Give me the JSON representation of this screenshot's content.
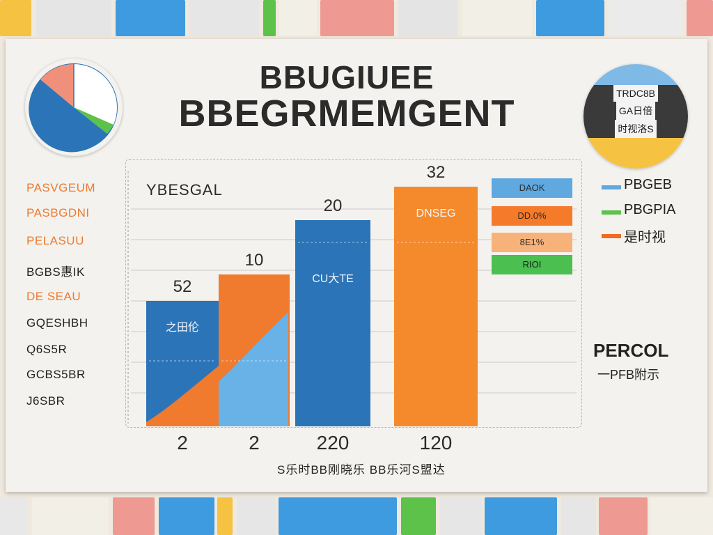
{
  "title": {
    "line1": "BBUGIUEE",
    "line2": "BBEGRMEMGENT"
  },
  "legend_sticker": {
    "rows": [
      "TRDC8B",
      "GA日倍",
      "时视洛S"
    ]
  },
  "side_labels": [
    "PASVGEUM",
    "PASBGDNI",
    "PELASUU",
    "BGBS惠IK",
    "DE SEAU",
    "GQESHBH",
    "Q6S5R",
    "GCBS5BR",
    "J6SBR"
  ],
  "chart_data": {
    "type": "bar",
    "ylabel": "YBESGAL",
    "xlabel": "S乐时BB刚晓乐 BB乐河S盟达",
    "categories": [
      "2",
      "2",
      "220",
      "120"
    ],
    "values": [
      52,
      10,
      20,
      32
    ],
    "value_labels": [
      "52",
      "10",
      "20",
      "32"
    ],
    "bar_inner_labels": [
      "之田伦",
      "",
      "CU大TE",
      "DNSEG"
    ],
    "ylim": [
      0,
      36
    ],
    "bar_colors": [
      "#2b74b8",
      "#f07a2e",
      "#2b74b8",
      "#f58a2c"
    ],
    "legend": [
      {
        "name": "PBGEB",
        "color": "#5fa8e0"
      },
      {
        "name": "PBGPIA",
        "color": "#5cc24a"
      },
      {
        "name": "是时视",
        "color": "#f06a22"
      }
    ]
  },
  "value_boxes": [
    {
      "label": "DAOK",
      "color": "#5fa8e0"
    },
    {
      "label": "DD.0%",
      "color": "#f57a2a"
    },
    {
      "label": "8E1%",
      "color": "#f7b27a"
    },
    {
      "label": "RIOI",
      "color": "#4bbf4f"
    }
  ],
  "annotation": {
    "title": "PERCOL",
    "subtitle": "一PFB附示"
  },
  "colors": {
    "blue": "#2b74b8",
    "orange": "#f07a2e",
    "light_blue": "#68b2e8",
    "green": "#5cc24a"
  }
}
